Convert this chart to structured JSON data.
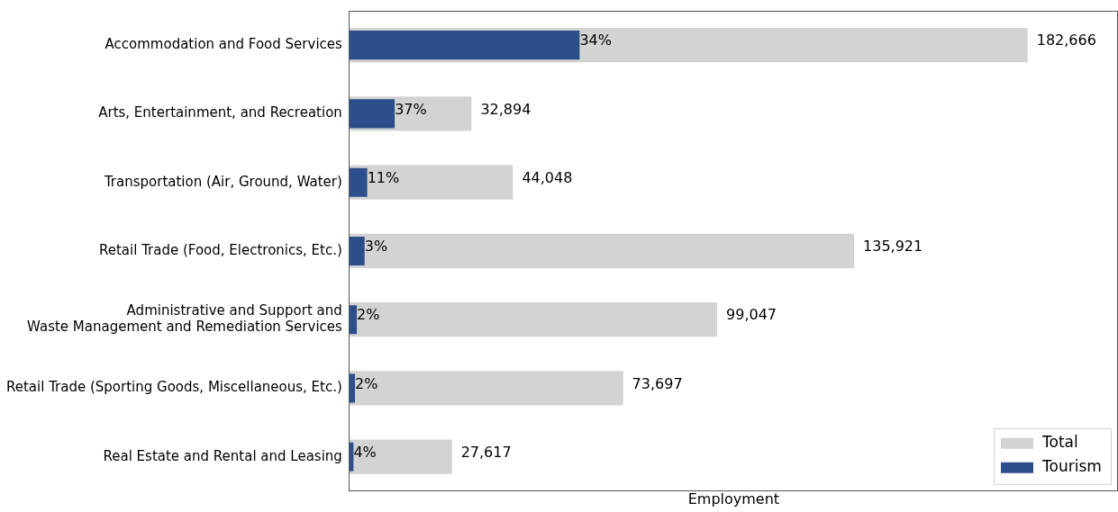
{
  "chart_data": {
    "type": "bar",
    "orientation": "horizontal",
    "xlabel": "Employment",
    "categories": [
      "Accommodation and Food Services",
      "Arts, Entertainment, and Recreation",
      "Transportation (Air, Ground, Water)",
      "Retail Trade (Food, Electronics, Etc.)",
      "Administrative and Support and\nWaste Management and Remediation Services",
      "Retail Trade (Sporting Goods, Miscellaneous, Etc.)",
      "Real Estate and Rental and Leasing"
    ],
    "series": [
      {
        "name": "Total",
        "color": "#d3d3d3",
        "values": [
          182666,
          32894,
          44048,
          135921,
          99047,
          73697,
          27617
        ],
        "value_labels": [
          "182,666",
          "32,894",
          "44,048",
          "135,921",
          "99,047",
          "73,697",
          "27,617"
        ]
      },
      {
        "name": "Tourism",
        "color": "#2c4f8c",
        "values": [
          62000,
          12200,
          4800,
          4100,
          2000,
          1500,
          1100
        ]
      }
    ],
    "annotations": [
      {
        "text": "34%",
        "x": 62000,
        "y": "Accommodation and Food Services"
      },
      {
        "text": "37%",
        "x": 12200,
        "y": "Arts, Entertainment, and Recreation"
      },
      {
        "text": "11%",
        "x": 4800,
        "y": "Transportation (Air, Ground, Water)"
      },
      {
        "text": "3%",
        "x": 4100,
        "y": "Retail Trade (Food, Electronics, Etc.)"
      },
      {
        "text": "2%",
        "x": 2000,
        "y": "Administrative and Support and\nWaste Management and Remediation Services"
      },
      {
        "text": "2%",
        "x": 1500,
        "y": "Retail Trade (Sporting Goods, Miscellaneous, Etc.)"
      },
      {
        "text": "4%",
        "x": 1100,
        "y": "Real Estate and Rental and Leasing"
      }
    ],
    "xlim": [
      0,
      207000
    ],
    "tick_labels": "y",
    "grid": false,
    "legend": "bottom right"
  }
}
